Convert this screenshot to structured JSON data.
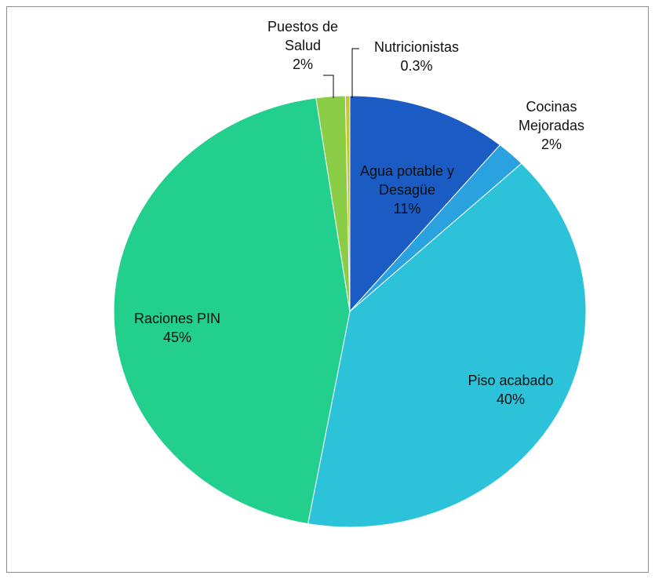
{
  "chart_data": {
    "type": "pie",
    "categories": [
      "Agua potable y Desagüe",
      "Cocinas Mejoradas",
      "Piso acabado",
      "Raciones PIN",
      "Puestos de Salud",
      "Nutricionistas"
    ],
    "values": [
      11,
      2,
      40,
      45,
      2,
      0.3
    ],
    "value_labels": [
      "11%",
      "2%",
      "40%",
      "45%",
      "2%",
      "0.3%"
    ],
    "colors": [
      "#1a5cc4",
      "#2aa2df",
      "#2cc3da",
      "#22cf8c",
      "#8ccd48",
      "#c9c52e"
    ]
  }
}
